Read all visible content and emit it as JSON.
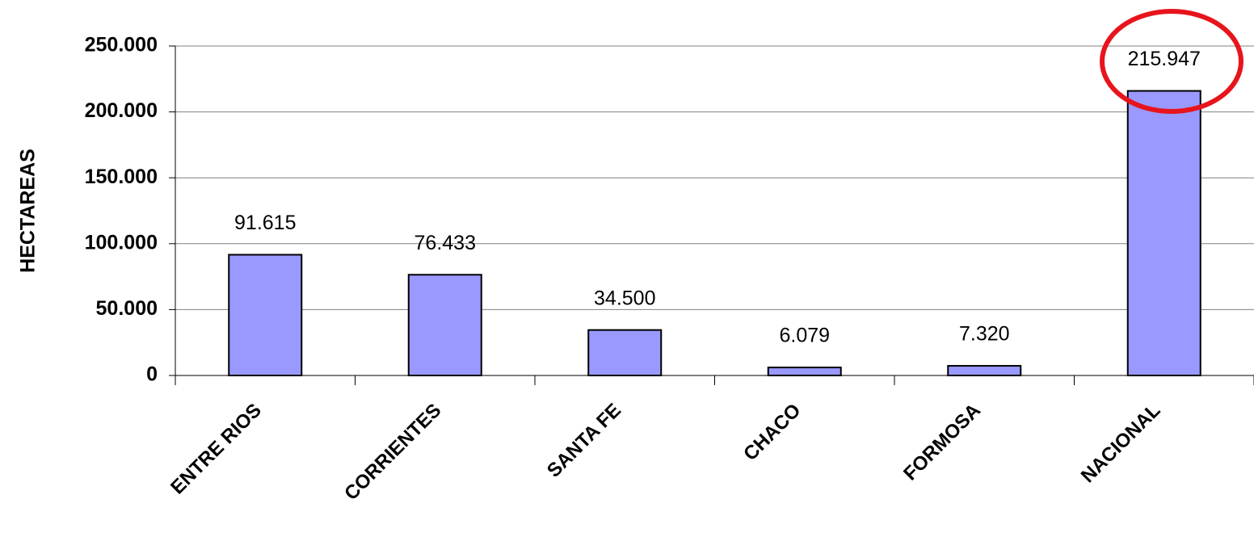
{
  "chart_data": {
    "type": "bar",
    "y_label": "HECTAREAS",
    "categories": [
      "ENTRE RIOS",
      "CORRIENTES",
      "SANTA FE",
      "CHACO",
      "FORMOSA",
      "NACIONAL"
    ],
    "values": [
      91615,
      76433,
      34500,
      6079,
      7320,
      215947
    ],
    "value_labels": [
      "91.615",
      "76.433",
      "34.500",
      "6.079",
      "7.320",
      "215.947"
    ],
    "color": "#9999ff",
    "ylim": [
      0,
      250000
    ],
    "yticks": [
      0,
      {
        "value": 50000,
        "label": "50.000"
      },
      {
        "value": 100000,
        "label": "100.000"
      },
      {
        "value": 150000,
        "label": "150.000"
      },
      {
        "value": 200000,
        "label": "200.000"
      },
      {
        "value": 250000,
        "label": "250.000"
      }
    ],
    "grid": true
  }
}
